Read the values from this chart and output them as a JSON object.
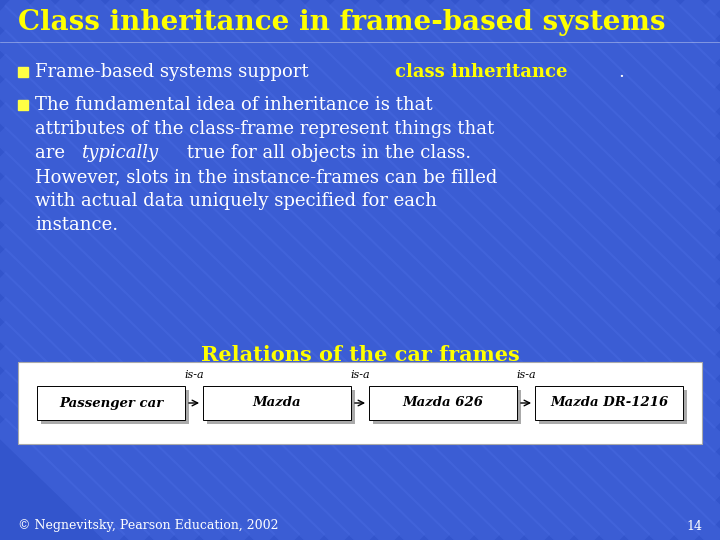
{
  "title": "Class inheritance in frame-based systems",
  "title_color": "#FFFF00",
  "title_fontsize": 20,
  "bg_color": "#3355CC",
  "stripe_color": "#5577EE",
  "bullet1_plain": "Frame-based systems support ",
  "bullet1_bold": "class inheritance",
  "bullet1_end": ".",
  "bullet2_line1": "The fundamental idea of inheritance is that",
  "bullet2_line2": "attributes of the class-frame represent things that",
  "bullet2_line3a": "are ",
  "bullet2_line3b": "typically",
  "bullet2_line3c": " true for all objects in the class.",
  "bullet2_line4": "However, slots in the instance-frames can be filled",
  "bullet2_line5": "with actual data uniquely specified for each",
  "bullet2_line6": "instance.",
  "text_color": "#FFFFFF",
  "highlight_color": "#FFFF00",
  "subtitle": "Relations of the car frames",
  "subtitle_color": "#FFFF00",
  "subtitle_fontsize": 15,
  "frames": [
    "Passenger car",
    "Mazda",
    "Mazda 626",
    "Mazda DR-1216"
  ],
  "relations": [
    "is-a",
    "is-a",
    "is-a"
  ],
  "footer": "© Negnevitsky, Pearson Education, 2002",
  "page_number": "14",
  "footer_color": "#FFFFFF",
  "footer_fontsize": 9
}
